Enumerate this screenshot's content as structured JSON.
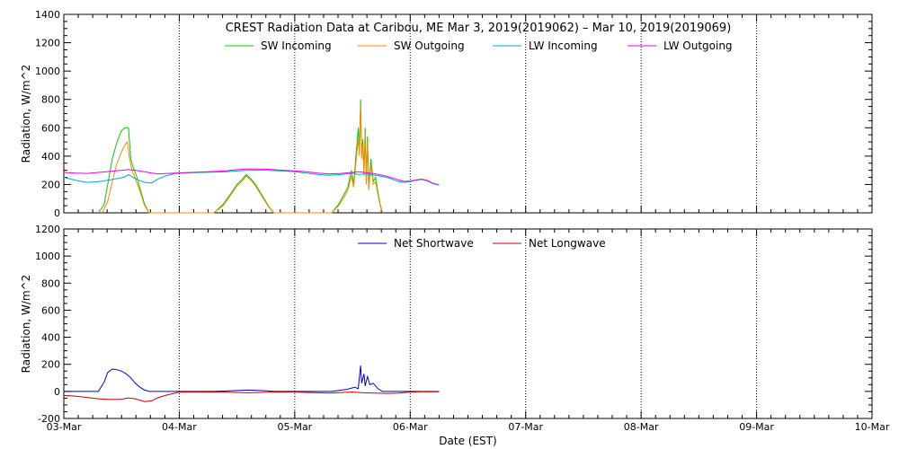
{
  "title": "CREST Radiation Data at Caribou, ME   Mar  3, 2019(2019062) – Mar 10, 2019(2019069)",
  "chart_data": [
    {
      "type": "line",
      "ylabel": "Radiation, W/m^2",
      "ylim": [
        0,
        1400
      ],
      "yticks": [
        0,
        200,
        400,
        600,
        800,
        1000,
        1200,
        1400
      ],
      "xlim": [
        0,
        7
      ],
      "grid": true,
      "legend_position": "top",
      "series": [
        {
          "name": "SW Incoming",
          "color": "#00cc00",
          "points": [
            [
              0.3,
              0
            ],
            [
              0.35,
              60
            ],
            [
              0.38,
              200
            ],
            [
              0.42,
              380
            ],
            [
              0.46,
              500
            ],
            [
              0.5,
              580
            ],
            [
              0.53,
              600
            ],
            [
              0.56,
              600
            ],
            [
              0.58,
              380
            ],
            [
              0.6,
              320
            ],
            [
              0.63,
              260
            ],
            [
              0.66,
              170
            ],
            [
              0.7,
              60
            ],
            [
              0.74,
              0
            ],
            [
              1.3,
              0
            ],
            [
              1.38,
              60
            ],
            [
              1.45,
              140
            ],
            [
              1.5,
              200
            ],
            [
              1.55,
              240
            ],
            [
              1.58,
              270
            ],
            [
              1.62,
              240
            ],
            [
              1.66,
              200
            ],
            [
              1.72,
              120
            ],
            [
              1.78,
              40
            ],
            [
              1.82,
              0
            ],
            [
              2.32,
              0
            ],
            [
              2.38,
              60
            ],
            [
              2.42,
              120
            ],
            [
              2.46,
              180
            ],
            [
              2.49,
              300
            ],
            [
              2.51,
              200
            ],
            [
              2.53,
              400
            ],
            [
              2.55,
              600
            ],
            [
              2.56,
              450
            ],
            [
              2.57,
              800
            ],
            [
              2.58,
              420
            ],
            [
              2.59,
              520
            ],
            [
              2.6,
              300
            ],
            [
              2.61,
              600
            ],
            [
              2.62,
              220
            ],
            [
              2.63,
              540
            ],
            [
              2.64,
              180
            ],
            [
              2.66,
              380
            ],
            [
              2.68,
              220
            ],
            [
              2.7,
              250
            ],
            [
              2.72,
              150
            ],
            [
              2.74,
              60
            ],
            [
              2.76,
              0
            ]
          ]
        },
        {
          "name": "SW Outgoing",
          "color": "#ff8800",
          "points": [
            [
              0.33,
              0
            ],
            [
              0.38,
              80
            ],
            [
              0.42,
              220
            ],
            [
              0.46,
              350
            ],
            [
              0.5,
              430
            ],
            [
              0.53,
              480
            ],
            [
              0.55,
              500
            ],
            [
              0.57,
              380
            ],
            [
              0.59,
              300
            ],
            [
              0.62,
              240
            ],
            [
              0.66,
              150
            ],
            [
              0.7,
              50
            ],
            [
              0.74,
              0
            ],
            [
              1.3,
              0
            ],
            [
              1.38,
              50
            ],
            [
              1.45,
              130
            ],
            [
              1.5,
              190
            ],
            [
              1.55,
              230
            ],
            [
              1.58,
              260
            ],
            [
              1.62,
              230
            ],
            [
              1.66,
              190
            ],
            [
              1.72,
              110
            ],
            [
              1.78,
              35
            ],
            [
              1.82,
              0
            ],
            [
              2.32,
              0
            ],
            [
              2.38,
              50
            ],
            [
              2.42,
              100
            ],
            [
              2.46,
              160
            ],
            [
              2.49,
              260
            ],
            [
              2.51,
              180
            ],
            [
              2.53,
              350
            ],
            [
              2.55,
              520
            ],
            [
              2.56,
              400
            ],
            [
              2.57,
              760
            ],
            [
              2.58,
              380
            ],
            [
              2.59,
              480
            ],
            [
              2.6,
              260
            ],
            [
              2.61,
              560
            ],
            [
              2.62,
              200
            ],
            [
              2.63,
              500
            ],
            [
              2.64,
              160
            ],
            [
              2.66,
              340
            ],
            [
              2.68,
              200
            ],
            [
              2.7,
              220
            ],
            [
              2.72,
              130
            ],
            [
              2.74,
              50
            ],
            [
              2.76,
              0
            ]
          ]
        },
        {
          "name": "LW Incoming",
          "color": "#00aacc",
          "points": [
            [
              0.0,
              250
            ],
            [
              0.1,
              230
            ],
            [
              0.2,
              215
            ],
            [
              0.3,
              220
            ],
            [
              0.38,
              230
            ],
            [
              0.45,
              240
            ],
            [
              0.52,
              250
            ],
            [
              0.56,
              270
            ],
            [
              0.6,
              250
            ],
            [
              0.65,
              230
            ],
            [
              0.7,
              215
            ],
            [
              0.76,
              210
            ],
            [
              0.82,
              240
            ],
            [
              0.88,
              260
            ],
            [
              0.95,
              275
            ],
            [
              1.0,
              280
            ],
            [
              1.2,
              285
            ],
            [
              1.4,
              290
            ],
            [
              1.5,
              295
            ],
            [
              1.6,
              300
            ],
            [
              1.75,
              300
            ],
            [
              1.9,
              295
            ],
            [
              2.0,
              290
            ],
            [
              2.1,
              280
            ],
            [
              2.2,
              270
            ],
            [
              2.3,
              265
            ],
            [
              2.4,
              270
            ],
            [
              2.5,
              280
            ],
            [
              2.55,
              270
            ],
            [
              2.6,
              275
            ],
            [
              2.7,
              265
            ],
            [
              2.8,
              250
            ],
            [
              2.9,
              220
            ],
            [
              2.95,
              215
            ],
            [
              3.0,
              220
            ],
            [
              3.05,
              230
            ],
            [
              3.1,
              235
            ],
            [
              3.15,
              225
            ],
            [
              3.2,
              205
            ],
            [
              3.25,
              195
            ]
          ]
        },
        {
          "name": "LW Outgoing",
          "color": "#ee00ee",
          "points": [
            [
              0.0,
              285
            ],
            [
              0.1,
              280
            ],
            [
              0.2,
              278
            ],
            [
              0.3,
              285
            ],
            [
              0.4,
              292
            ],
            [
              0.5,
              300
            ],
            [
              0.56,
              305
            ],
            [
              0.62,
              300
            ],
            [
              0.7,
              290
            ],
            [
              0.76,
              280
            ],
            [
              0.82,
              275
            ],
            [
              0.9,
              278
            ],
            [
              1.0,
              282
            ],
            [
              1.2,
              288
            ],
            [
              1.4,
              295
            ],
            [
              1.5,
              305
            ],
            [
              1.6,
              310
            ],
            [
              1.75,
              308
            ],
            [
              1.9,
              300
            ],
            [
              2.0,
              295
            ],
            [
              2.1,
              290
            ],
            [
              2.2,
              280
            ],
            [
              2.3,
              275
            ],
            [
              2.4,
              278
            ],
            [
              2.5,
              285
            ],
            [
              2.55,
              290
            ],
            [
              2.6,
              285
            ],
            [
              2.7,
              275
            ],
            [
              2.8,
              258
            ],
            [
              2.9,
              232
            ],
            [
              2.95,
              222
            ],
            [
              3.0,
              225
            ],
            [
              3.05,
              232
            ],
            [
              3.1,
              238
            ],
            [
              3.15,
              228
            ],
            [
              3.2,
              208
            ],
            [
              3.25,
              198
            ]
          ]
        }
      ]
    },
    {
      "type": "line",
      "ylabel": "Radiation, W/m^2",
      "ylim": [
        -200,
        1200
      ],
      "yticks": [
        -200,
        0,
        200,
        400,
        600,
        800,
        1000,
        1200
      ],
      "xlim": [
        0,
        7
      ],
      "xticks": [
        "03-Mar",
        "04-Mar",
        "05-Mar",
        "06-Mar",
        "07-Mar",
        "08-Mar",
        "09-Mar",
        "10-Mar"
      ],
      "xlabel": "Date (EST)",
      "grid": true,
      "legend_position": "top",
      "series": [
        {
          "name": "Net Shortwave",
          "color": "#0000cc",
          "points": [
            [
              0.0,
              0
            ],
            [
              0.3,
              0
            ],
            [
              0.35,
              70
            ],
            [
              0.38,
              140
            ],
            [
              0.42,
              165
            ],
            [
              0.46,
              160
            ],
            [
              0.5,
              150
            ],
            [
              0.54,
              130
            ],
            [
              0.58,
              100
            ],
            [
              0.62,
              60
            ],
            [
              0.66,
              30
            ],
            [
              0.7,
              10
            ],
            [
              0.74,
              0
            ],
            [
              1.3,
              0
            ],
            [
              1.45,
              5
            ],
            [
              1.6,
              10
            ],
            [
              1.75,
              5
            ],
            [
              1.82,
              0
            ],
            [
              2.32,
              0
            ],
            [
              2.45,
              15
            ],
            [
              2.52,
              30
            ],
            [
              2.55,
              20
            ],
            [
              2.57,
              190
            ],
            [
              2.58,
              60
            ],
            [
              2.6,
              130
            ],
            [
              2.61,
              40
            ],
            [
              2.63,
              110
            ],
            [
              2.65,
              50
            ],
            [
              2.68,
              60
            ],
            [
              2.72,
              20
            ],
            [
              2.76,
              0
            ],
            [
              3.25,
              0
            ]
          ]
        },
        {
          "name": "Net Longwave",
          "color": "#cc0000",
          "points": [
            [
              0.0,
              -30
            ],
            [
              0.1,
              -35
            ],
            [
              0.2,
              -45
            ],
            [
              0.3,
              -55
            ],
            [
              0.4,
              -60
            ],
            [
              0.5,
              -58
            ],
            [
              0.56,
              -48
            ],
            [
              0.62,
              -55
            ],
            [
              0.7,
              -75
            ],
            [
              0.76,
              -70
            ],
            [
              0.82,
              -45
            ],
            [
              0.9,
              -25
            ],
            [
              1.0,
              -5
            ],
            [
              1.2,
              -5
            ],
            [
              1.4,
              -5
            ],
            [
              1.6,
              -10
            ],
            [
              1.8,
              -5
            ],
            [
              2.0,
              -5
            ],
            [
              2.2,
              -10
            ],
            [
              2.3,
              -12
            ],
            [
              2.4,
              -8
            ],
            [
              2.5,
              -5
            ],
            [
              2.6,
              -10
            ],
            [
              2.7,
              -12
            ],
            [
              2.8,
              -15
            ],
            [
              2.9,
              -12
            ],
            [
              3.0,
              -5
            ],
            [
              3.1,
              -3
            ],
            [
              3.2,
              -3
            ],
            [
              3.25,
              -3
            ]
          ]
        }
      ]
    }
  ]
}
